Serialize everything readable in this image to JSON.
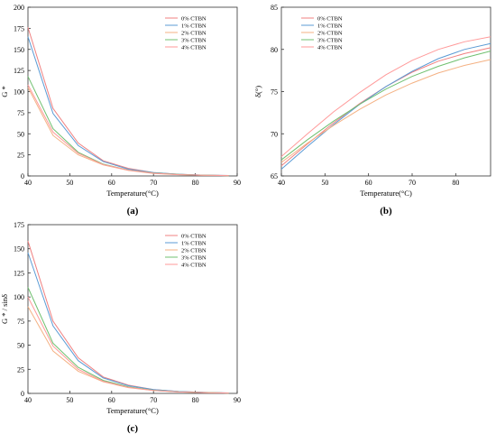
{
  "figure": {
    "panels": [
      {
        "caption": "(a)"
      },
      {
        "caption": "(b)"
      },
      {
        "caption": "(c)"
      }
    ]
  },
  "chart_data": [
    {
      "type": "line",
      "caption": "(a)",
      "xlabel": "Temperature(°C)",
      "ylabel": "G *",
      "xlim": [
        40,
        90
      ],
      "ylim": [
        0,
        200
      ],
      "xticks": [
        40,
        50,
        60,
        70,
        80,
        90
      ],
      "yticks": [
        0,
        25,
        50,
        75,
        100,
        125,
        150,
        175,
        200
      ],
      "legend_position": "top-right",
      "x": [
        40,
        46,
        52,
        58,
        64,
        70,
        76,
        82,
        88
      ],
      "series": [
        {
          "name": "0% CTBN",
          "color": "#f08080",
          "values": [
            176,
            80,
            39,
            18,
            9,
            4,
            2,
            1,
            0.5
          ]
        },
        {
          "name": "1% CTBN",
          "color": "#5b9bd5",
          "values": [
            165,
            74,
            36,
            17,
            8,
            4,
            2,
            1,
            0.5
          ]
        },
        {
          "name": "2% CTBN",
          "color": "#f4b183",
          "values": [
            105,
            48,
            25,
            13,
            6.5,
            3,
            1.5,
            0.8,
            0.4
          ]
        },
        {
          "name": "3% CTBN",
          "color": "#70c070",
          "values": [
            118,
            56,
            28,
            14,
            7,
            3.5,
            1.8,
            0.9,
            0.4
          ]
        },
        {
          "name": "4% CTBN",
          "color": "#ff9a9a",
          "values": [
            108,
            52,
            27,
            13.5,
            6.8,
            3.2,
            1.6,
            0.8,
            0.4
          ]
        }
      ]
    },
    {
      "type": "line",
      "caption": "(b)",
      "xlabel": "Temperature(°C)",
      "ylabel": "δ(°)",
      "xlim": [
        40,
        88
      ],
      "ylim": [
        65,
        85
      ],
      "xticks": [
        40,
        50,
        60,
        70,
        80
      ],
      "yticks": [
        65,
        70,
        75,
        80,
        85
      ],
      "legend_position": "top-left",
      "x": [
        40,
        46,
        52,
        58,
        64,
        70,
        76,
        82,
        88
      ],
      "series": [
        {
          "name": "0% CTBN",
          "color": "#f08080",
          "values": [
            66.2,
            68.8,
            71.3,
            73.6,
            75.6,
            77.3,
            78.6,
            79.5,
            80.2
          ]
        },
        {
          "name": "1% CTBN",
          "color": "#5b9bd5",
          "values": [
            65.8,
            68.5,
            71.1,
            73.5,
            75.6,
            77.4,
            78.9,
            80.0,
            80.7
          ]
        },
        {
          "name": "2% CTBN",
          "color": "#f4b183",
          "values": [
            66.6,
            68.9,
            71.0,
            72.9,
            74.6,
            76.0,
            77.2,
            78.1,
            78.8
          ]
        },
        {
          "name": "3% CTBN",
          "color": "#70c070",
          "values": [
            66.9,
            69.3,
            71.5,
            73.5,
            75.3,
            76.8,
            78.0,
            79.0,
            79.8
          ]
        },
        {
          "name": "4% CTBN",
          "color": "#ff9a9a",
          "values": [
            67.3,
            70.0,
            72.6,
            74.9,
            77.0,
            78.7,
            80.0,
            80.9,
            81.5
          ]
        }
      ]
    },
    {
      "type": "line",
      "caption": "(c)",
      "xlabel": "Temperature(°C)",
      "ylabel": "G * / sinδ",
      "xlim": [
        40,
        90
      ],
      "ylim": [
        0,
        175
      ],
      "xticks": [
        40,
        50,
        60,
        70,
        80,
        90
      ],
      "yticks": [
        0,
        25,
        50,
        75,
        100,
        125,
        150,
        175
      ],
      "legend_position": "top-right",
      "x": [
        40,
        46,
        52,
        58,
        64,
        70,
        76,
        82,
        88
      ],
      "series": [
        {
          "name": "0% CTBN",
          "color": "#f08080",
          "values": [
            158,
            75,
            37,
            17,
            8.5,
            4,
            2,
            1,
            0.5
          ]
        },
        {
          "name": "1% CTBN",
          "color": "#5b9bd5",
          "values": [
            146,
            70,
            34,
            16,
            8,
            4,
            2,
            1,
            0.5
          ]
        },
        {
          "name": "2% CTBN",
          "color": "#f4b183",
          "values": [
            90,
            44,
            23,
            12,
            6,
            3,
            1.5,
            0.8,
            0.4
          ]
        },
        {
          "name": "3% CTBN",
          "color": "#70c070",
          "values": [
            110,
            52,
            27,
            13.5,
            6.8,
            3.3,
            1.7,
            0.9,
            0.4
          ]
        },
        {
          "name": "4% CTBN",
          "color": "#ff9a9a",
          "values": [
            100,
            49,
            25,
            12.5,
            6.3,
            3,
            1.5,
            0.8,
            0.4
          ]
        }
      ]
    }
  ]
}
